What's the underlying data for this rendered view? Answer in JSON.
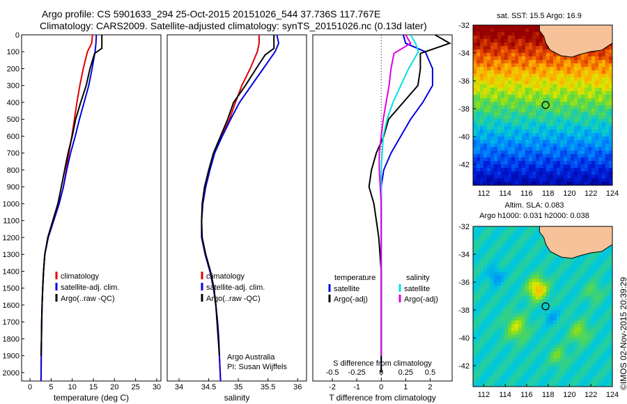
{
  "header": {
    "line1": "Argo profile: CS 5901633_294 25-Oct-2015 20151026_544 37.736S 117.767E",
    "line2": "Climatology: CARS2009. Satellite-adjusted climatology: synTS_20151026.nc (0.13d later)"
  },
  "credit": "©IMOS 02-Nov-2015 20:39:29",
  "colors": {
    "climatology": "#e00000",
    "satellite": "#0000e0",
    "argo": "#000000",
    "satellite_s": "#00e0e0",
    "argo_s": "#e000e0",
    "land": "#f7c29a"
  },
  "chart_data": [
    {
      "type": "line",
      "panel": "temperature",
      "xlabel": "temperature (deg C)",
      "ylabel": "",
      "xlim": [
        -2,
        31
      ],
      "ylim": [
        2050,
        0
      ],
      "xticks": [
        0,
        5,
        10,
        15,
        20,
        25,
        30
      ],
      "yticks": [
        0,
        100,
        200,
        300,
        400,
        500,
        600,
        700,
        800,
        900,
        1000,
        1100,
        1200,
        1300,
        1400,
        1500,
        1600,
        1700,
        1800,
        1900,
        2000
      ],
      "legend": [
        "climatology",
        "satellite-adj. clim.",
        "Argo(..raw -QC)"
      ],
      "series": [
        {
          "name": "climatology",
          "color": "climatology",
          "x": [
            14.8,
            14.6,
            13.6,
            12.6,
            11.8,
            11.1,
            10.5,
            9.9,
            9.2,
            8.6,
            7.9,
            6.9,
            5.6,
            4.3,
            3.5,
            3.2,
            3.0,
            2.85,
            2.75,
            2.7,
            2.65,
            2.6
          ],
          "y": [
            0,
            50,
            100,
            200,
            300,
            400,
            500,
            600,
            700,
            800,
            900,
            1000,
            1100,
            1200,
            1300,
            1400,
            1500,
            1600,
            1700,
            1800,
            1900,
            2050
          ]
        },
        {
          "name": "satellite-adj. clim.",
          "color": "satellite",
          "x": [
            15.7,
            15.6,
            15.4,
            14.7,
            13.9,
            12.8,
            11.7,
            10.7,
            9.6,
            8.7,
            7.9,
            6.9,
            5.6,
            4.3,
            3.5,
            3.2,
            3.0,
            2.85,
            2.75,
            2.7,
            2.65,
            2.6
          ],
          "y": [
            0,
            50,
            100,
            200,
            300,
            400,
            500,
            600,
            700,
            800,
            900,
            1000,
            1100,
            1200,
            1300,
            1400,
            1500,
            1600,
            1700,
            1800,
            1900,
            2050
          ]
        },
        {
          "name": "Argo(..raw -QC)",
          "color": "argo",
          "x": [
            17.0,
            17.0,
            15.3,
            14.2,
            13.3,
            12.0,
            10.8,
            10.0,
            9.0,
            8.2,
            7.4,
            6.6,
            5.4,
            4.2,
            3.5,
            3.2,
            3.0,
            2.85,
            2.75,
            2.7,
            2.6
          ],
          "y": [
            0,
            80,
            110,
            200,
            300,
            400,
            500,
            600,
            700,
            800,
            900,
            1000,
            1100,
            1200,
            1300,
            1400,
            1500,
            1600,
            1700,
            1800,
            1900
          ]
        }
      ]
    },
    {
      "type": "line",
      "panel": "salinity",
      "xlabel": "salinity",
      "xlim": [
        33.8,
        36.15
      ],
      "ylim": [
        2050,
        0
      ],
      "xticks": [
        34,
        34.5,
        35,
        35.5,
        36
      ],
      "legend": [
        "climatology",
        "satellite-adj. clim.",
        "Argo(..raw -QC)"
      ],
      "annotation": [
        "Argo Australia",
        "PI: Susan Wijffels"
      ],
      "series": [
        {
          "name": "climatology",
          "color": "climatology",
          "x": [
            35.35,
            35.35,
            35.32,
            35.2,
            35.06,
            34.95,
            34.85,
            34.72,
            34.6,
            34.52,
            34.45,
            34.4,
            34.38,
            34.38,
            34.44,
            34.52,
            34.58,
            34.62,
            34.65,
            34.67,
            34.68,
            34.7
          ],
          "y": [
            0,
            50,
            100,
            200,
            300,
            400,
            500,
            600,
            700,
            800,
            900,
            1000,
            1100,
            1200,
            1300,
            1400,
            1500,
            1600,
            1700,
            1800,
            1900,
            2050
          ]
        },
        {
          "name": "satellite-adj. clim.",
          "color": "satellite",
          "x": [
            35.65,
            35.68,
            35.62,
            35.42,
            35.22,
            35.02,
            34.87,
            34.73,
            34.6,
            34.52,
            34.45,
            34.4,
            34.38,
            34.38,
            34.44,
            34.52,
            34.58,
            34.62,
            34.65,
            34.67,
            34.68,
            34.7
          ],
          "y": [
            0,
            50,
            100,
            200,
            300,
            400,
            500,
            600,
            700,
            800,
            900,
            1000,
            1100,
            1200,
            1300,
            1400,
            1500,
            1600,
            1700,
            1800,
            1900,
            2050
          ]
        },
        {
          "name": "Argo(..raw -QC)",
          "color": "argo",
          "x": [
            35.6,
            35.6,
            35.45,
            35.3,
            35.12,
            34.92,
            34.82,
            34.7,
            34.58,
            34.5,
            34.43,
            34.39,
            34.38,
            34.39,
            34.45,
            34.53,
            34.59,
            34.62,
            34.64,
            34.66,
            34.68
          ],
          "y": [
            0,
            80,
            120,
            200,
            300,
            400,
            500,
            600,
            700,
            800,
            900,
            1000,
            1100,
            1200,
            1300,
            1400,
            1500,
            1600,
            1700,
            1800,
            1900
          ]
        }
      ]
    },
    {
      "type": "line",
      "panel": "difference",
      "xlabel": "T difference from climatology",
      "xlabel_top": "S difference from climatology",
      "xlim": [
        -2.8,
        2.9
      ],
      "ylim": [
        2050,
        0
      ],
      "xticks": [
        -2,
        -1,
        0,
        1,
        2
      ],
      "sticks": [
        -0.5,
        -0.25,
        0,
        0.25,
        0.5
      ],
      "legend_titles": [
        "temperature",
        "salinity"
      ],
      "legend": [
        "satellite",
        "Argo(-adj)",
        "satellite",
        "Argo(-adj)"
      ],
      "series": [
        {
          "name": "satellite",
          "group": "temperature",
          "color": "satellite",
          "x": [
            0.9,
            1.0,
            1.8,
            2.1,
            2.1,
            1.7,
            1.2,
            0.8,
            0.4,
            0.1,
            0.0,
            0.0,
            0.0,
            0.0,
            0.0,
            0.0,
            0.0,
            0.0,
            0.0
          ],
          "y": [
            0,
            50,
            100,
            200,
            300,
            400,
            500,
            600,
            700,
            800,
            900,
            1000,
            1100,
            1200,
            1400,
            1600,
            1800,
            1900,
            2000
          ]
        },
        {
          "name": "Argo(-adj)",
          "group": "temperature",
          "color": "argo",
          "x": [
            2.2,
            2.8,
            1.6,
            1.6,
            1.5,
            0.9,
            0.3,
            0.1,
            -0.2,
            -0.4,
            -0.5,
            -0.3,
            -0.2,
            -0.1,
            0.0,
            0.0,
            0.0,
            0.0,
            0.0
          ],
          "y": [
            0,
            50,
            110,
            200,
            300,
            400,
            500,
            600,
            700,
            800,
            900,
            1000,
            1100,
            1200,
            1400,
            1600,
            1800,
            1900,
            2000
          ]
        },
        {
          "name": "satellite",
          "group": "salinity",
          "color": "satellite_s",
          "x": [
            0.3,
            0.35,
            0.38,
            0.28,
            0.2,
            0.12,
            0.06,
            0.02,
            0.01,
            0.0,
            0.0,
            0.0,
            0.0,
            0.0,
            0.0,
            0.0,
            0.0
          ],
          "y": [
            0,
            50,
            100,
            200,
            300,
            400,
            500,
            600,
            700,
            800,
            900,
            1000,
            1200,
            1400,
            1600,
            1800,
            1900
          ]
        },
        {
          "name": "Argo(-adj)",
          "group": "salinity",
          "color": "argo_s",
          "x": [
            0.25,
            0.3,
            0.13,
            0.1,
            0.08,
            0.05,
            0.02,
            0.0,
            -0.02,
            -0.02,
            -0.01,
            0.0,
            0.0,
            0.0,
            0.0,
            0.0,
            0.0
          ],
          "y": [
            0,
            50,
            110,
            200,
            300,
            400,
            500,
            600,
            700,
            800,
            900,
            1000,
            1200,
            1400,
            1600,
            1800,
            1900
          ]
        }
      ]
    },
    {
      "type": "heatmap",
      "panel": "sst_map",
      "title": "sat. SST: 15.5 Argo: 16.9",
      "xlim": [
        111,
        124
      ],
      "ylim": [
        -43.5,
        -32
      ],
      "xticks": [
        112,
        114,
        116,
        118,
        120,
        122,
        124
      ],
      "yticks": [
        -32,
        -34,
        -36,
        -38,
        -40,
        -42
      ],
      "marker": {
        "lon": 117.767,
        "lat": -37.736
      }
    },
    {
      "type": "heatmap",
      "panel": "sla_map",
      "title": "Altim. SLA: 0.083",
      "subtitle": "Argo h1000: 0.031 h2000: 0.038",
      "xlim": [
        111,
        124
      ],
      "ylim": [
        -43.5,
        -32
      ],
      "xticks": [
        112,
        114,
        116,
        118,
        120,
        122,
        124
      ],
      "yticks": [
        -32,
        -34,
        -36,
        -38,
        -40,
        -42
      ],
      "marker": {
        "lon": 117.767,
        "lat": -37.736
      }
    }
  ]
}
